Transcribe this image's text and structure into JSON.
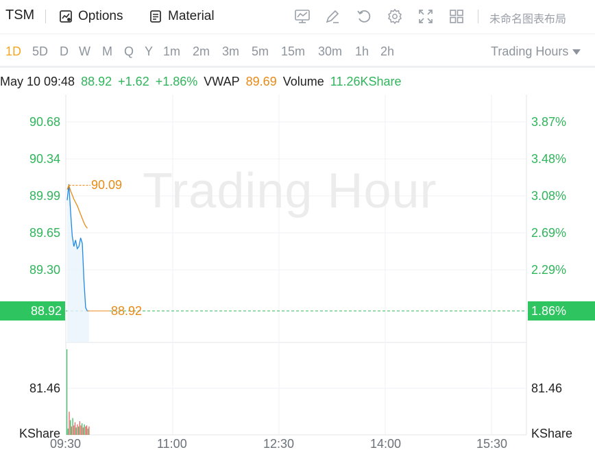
{
  "toolbar": {
    "symbol": "TSM",
    "options_label": "Options",
    "material_label": "Material",
    "layout_name": "未命名图表布局",
    "icons": [
      "indicator-icon",
      "draw-icon",
      "undo-icon",
      "settings-icon",
      "fullscreen-icon",
      "layout-grid-icon"
    ]
  },
  "periods": {
    "items": [
      "1D",
      "5D",
      "D",
      "W",
      "M",
      "Q",
      "Y",
      "1m",
      "2m",
      "3m",
      "5m",
      "15m",
      "30m",
      "1h",
      "2h"
    ],
    "active": "1D",
    "trading_hours_label": "Trading Hours"
  },
  "info": {
    "datetime": "May 10 09:48",
    "price": "88.92",
    "change": "+1.62",
    "change_pct": "+1.86%",
    "vwap_label": "VWAP",
    "vwap": "89.69",
    "volume_label": "Volume",
    "volume": "11.26KShare"
  },
  "chart_data": {
    "type": "line",
    "watermark": "Trading Hour",
    "y_left_ticks": [
      "90.68",
      "90.34",
      "89.99",
      "89.65",
      "89.30"
    ],
    "y_right_ticks": [
      "3.87%",
      "3.48%",
      "3.08%",
      "2.69%",
      "2.29%"
    ],
    "y_range": [
      88.92,
      90.68
    ],
    "x_ticks": [
      "09:30",
      "11:00",
      "12:30",
      "14:00",
      "15:30"
    ],
    "current_price": "88.92",
    "current_pct": "1.86%",
    "high_label": "90.09",
    "last_label": "88.92",
    "volume_axis_left": "81.46",
    "volume_axis_right": "81.46",
    "volume_unit": "KShare",
    "price_series": {
      "name": "Price",
      "color": "#1e88e5",
      "points": [
        [
          0,
          89.95
        ],
        [
          1,
          90.1
        ],
        [
          2,
          89.85
        ],
        [
          3,
          89.62
        ],
        [
          4,
          89.52
        ],
        [
          5,
          89.58
        ],
        [
          6,
          89.5
        ],
        [
          7,
          89.52
        ],
        [
          8,
          89.6
        ],
        [
          9,
          89.55
        ],
        [
          10,
          89.2
        ],
        [
          11,
          88.95
        ],
        [
          12,
          88.92
        ],
        [
          13,
          88.92
        ]
      ]
    },
    "vwap_series": {
      "name": "VWAP",
      "color": "#e88a16",
      "points": [
        [
          0,
          90.05
        ],
        [
          1,
          90.09
        ],
        [
          2,
          90.04
        ],
        [
          3,
          90.0
        ],
        [
          4,
          89.96
        ],
        [
          5,
          89.93
        ],
        [
          6,
          89.9
        ],
        [
          7,
          89.86
        ],
        [
          8,
          89.82
        ],
        [
          9,
          89.78
        ],
        [
          10,
          89.74
        ],
        [
          11,
          89.71
        ],
        [
          12,
          89.69
        ]
      ]
    },
    "volume": {
      "values": [
        81.46,
        6,
        22,
        14,
        8,
        16,
        9,
        12,
        7,
        10,
        8,
        13,
        9,
        11,
        7,
        10,
        8,
        9,
        6,
        8
      ],
      "colors": [
        "#2fb55a",
        "#2fb55a",
        "#ef5350",
        "#2fb55a",
        "#ef5350",
        "#2fb55a",
        "#ef5350",
        "#ef5350",
        "#2fb55a",
        "#ef5350",
        "#2fb55a",
        "#ef5350",
        "#ef5350",
        "#2fb55a",
        "#ef5350",
        "#2fb55a",
        "#ef5350",
        "#ef5350",
        "#2fb55a",
        "#ef5350"
      ]
    }
  }
}
